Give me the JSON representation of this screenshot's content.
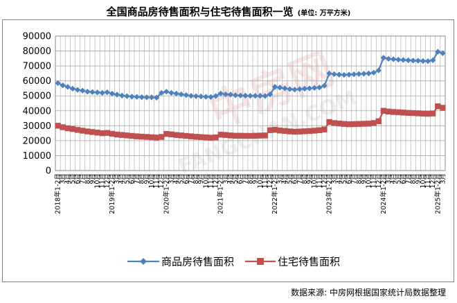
{
  "title": "全国商品房待售面积与住宅待售面积一览",
  "unit_note": "(单位: 万平方米)",
  "source": "数据来源: 中房网根据国家统计局数据整理",
  "watermark": {
    "cn": "中房网",
    "en": "FANGCHAN.COM"
  },
  "colors": {
    "commercial": "#4F81BD",
    "residential": "#C0504D",
    "grid": "#A6A6A6"
  },
  "chart_data": {
    "type": "line",
    "title": "全国商品房待售面积与住宅待售面积一览",
    "xlabel": "",
    "ylabel": "",
    "ylim": [
      0,
      90000
    ],
    "yticks": [
      0,
      10000,
      20000,
      30000,
      40000,
      50000,
      60000,
      70000,
      80000,
      90000
    ],
    "grid": true,
    "legend": "bottom",
    "x": [
      "2018年1-2月",
      "2018年3月",
      "2018年4月",
      "2018年5月",
      "2018年6月",
      "2018年7月",
      "2018年8月",
      "2018年9月",
      "2018年10月",
      "2018年11月",
      "2018年12月",
      "2019年1-2月",
      "2019年3月",
      "2019年4月",
      "2019年5月",
      "2019年6月",
      "2019年7月",
      "2019年8月",
      "2019年9月",
      "2019年10月",
      "2019年11月",
      "2019年12月",
      "2020年1-2月",
      "2020年3月",
      "2020年4月",
      "2020年5月",
      "2020年6月",
      "2020年7月",
      "2020年8月",
      "2020年9月",
      "2020年10月",
      "2020年11月",
      "2020年12月",
      "2021年1-2月",
      "2021年3月",
      "2021年4月",
      "2021年5月",
      "2021年6月",
      "2021年7月",
      "2021年8月",
      "2021年9月",
      "2021年10月",
      "2021年11月",
      "2021年12月",
      "2022年1-2月",
      "2022年3月",
      "2022年4月",
      "2022年5月",
      "2022年6月",
      "2022年7月",
      "2022年8月",
      "2022年9月",
      "2022年10月",
      "2022年11月",
      "2022年12月",
      "2023年1-2月",
      "2023年3月",
      "2023年4月",
      "2023年5月",
      "2023年6月",
      "2023年7月",
      "2023年8月",
      "2023年9月",
      "2023年10月",
      "2023年11月",
      "2023年12月",
      "2024年1-2月",
      "2024年3月",
      "2024年4月",
      "2024年5月",
      "2024年6月",
      "2024年7月",
      "2024年8月",
      "2024年9月",
      "2024年10月",
      "2024年11月",
      "2024年12月",
      "2025年1-2月",
      "2025年3月"
    ],
    "x_tick_labels": [
      "2018年1-2月",
      "3月",
      "4月",
      "5月",
      "6月",
      "7月",
      "8月",
      "9月",
      "10月",
      "11月",
      "12月",
      "2019年1-2月",
      "3月",
      "4月",
      "5月",
      "6月",
      "7月",
      "8月",
      "9月",
      "10月",
      "11月",
      "12月",
      "2020年1-2月",
      "3月",
      "4月",
      "5月",
      "6月",
      "7月",
      "8月",
      "9月",
      "10月",
      "11月",
      "12月",
      "2021年1-2月",
      "3月",
      "4月",
      "5月",
      "6月",
      "7月",
      "8月",
      "9月",
      "10月",
      "11月",
      "12月",
      "2022年1-2月",
      "3月",
      "4月",
      "5月",
      "6月",
      "7月",
      "8月",
      "9月",
      "10月",
      "11月",
      "12月",
      "2023年1-2月",
      "3月",
      "4月",
      "5月",
      "6月",
      "7月",
      "8月",
      "9月",
      "10月",
      "11月",
      "12月",
      "2024年1-2月",
      "3月",
      "4月",
      "5月",
      "6月",
      "7月",
      "8月",
      "9月",
      "10月",
      "11月",
      "12月",
      "2025年1-2月",
      "3月"
    ],
    "series": [
      {
        "name": "商品房待售面积",
        "values": [
          58500,
          57000,
          56000,
          54800,
          54000,
          53500,
          52800,
          52500,
          52300,
          52000,
          52400,
          51500,
          50800,
          50200,
          49800,
          49500,
          49300,
          49100,
          49000,
          49000,
          48800,
          52000,
          52800,
          52000,
          51500,
          51000,
          50500,
          50000,
          49800,
          49600,
          49400,
          49200,
          49900,
          51600,
          51000,
          50800,
          50400,
          50200,
          50100,
          50000,
          50000,
          50000,
          49900,
          51000,
          56000,
          55500,
          55000,
          54500,
          54200,
          54500,
          54800,
          55000,
          55300,
          55600,
          56800,
          65000,
          64500,
          64200,
          64000,
          64200,
          64400,
          64600,
          64800,
          65000,
          65500,
          67000,
          75500,
          74800,
          74500,
          74200,
          74000,
          73800,
          73600,
          73500,
          73300,
          73200,
          73800,
          79500,
          78500
        ]
      },
      {
        "name": "住宅待售面积",
        "values": [
          30000,
          29000,
          28300,
          27800,
          27200,
          26700,
          26200,
          25800,
          25400,
          25000,
          25200,
          24600,
          24100,
          23800,
          23500,
          23200,
          22900,
          22700,
          22500,
          22300,
          22100,
          22500,
          24500,
          24200,
          23800,
          23500,
          23200,
          22900,
          22600,
          22400,
          22200,
          22000,
          22200,
          24000,
          23800,
          23500,
          23300,
          23300,
          23200,
          23200,
          23300,
          23400,
          23500,
          27000,
          27300,
          26800,
          26500,
          26200,
          26000,
          26100,
          26300,
          26500,
          26700,
          27000,
          27500,
          32500,
          31800,
          31500,
          31200,
          31000,
          31100,
          31200,
          31300,
          31400,
          31800,
          33000,
          40000,
          39500,
          39200,
          39000,
          38800,
          38600,
          38500,
          38300,
          38100,
          38000,
          38200,
          43000,
          42000
        ]
      }
    ]
  }
}
